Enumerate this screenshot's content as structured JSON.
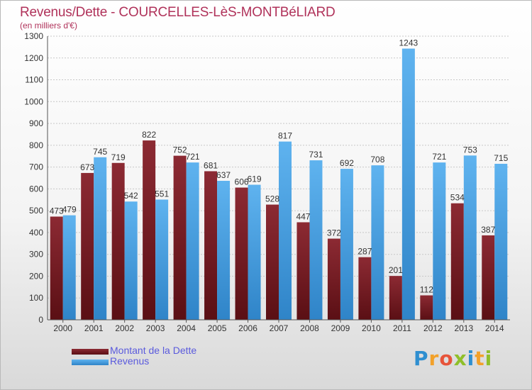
{
  "header": {
    "title": "Revenus/Dette - COURCELLES-LèS-MONTBéLIARD",
    "subtitle": "(en milliers d'€)"
  },
  "legend": {
    "debt_label": "Montant de la Dette",
    "revenue_label": "Revenus"
  },
  "logo": {
    "text": "Proxiti",
    "letters": [
      "P",
      "r",
      "o",
      "x",
      "i",
      "t",
      "i"
    ]
  },
  "colors": {
    "debt": "#7a1f27",
    "revenue": "#4aa3e3",
    "title": "#b0325a",
    "legend_text": "#5a5add"
  },
  "chart_data": {
    "type": "bar",
    "title": "Revenus/Dette - COURCELLES-LèS-MONTBéLIARD",
    "subtitle": "(en milliers d'€)",
    "categories": [
      "2000",
      "2001",
      "2002",
      "2003",
      "2004",
      "2005",
      "2006",
      "2007",
      "2008",
      "2009",
      "2010",
      "2011",
      "2012",
      "2013",
      "2014"
    ],
    "series": [
      {
        "name": "Montant de la Dette",
        "values": [
          473,
          673,
          719,
          822,
          752,
          681,
          606,
          528,
          447,
          372,
          287,
          201,
          112,
          534,
          387
        ]
      },
      {
        "name": "Revenus",
        "values": [
          479,
          745,
          542,
          551,
          721,
          637,
          619,
          817,
          731,
          692,
          708,
          1243,
          721,
          753,
          715
        ]
      }
    ],
    "ylim": [
      0,
      1300
    ],
    "yticks": [
      0,
      100,
      200,
      300,
      400,
      500,
      600,
      700,
      800,
      900,
      1000,
      1100,
      1200,
      1300
    ],
    "grid": true,
    "legend_position": "bottom-left"
  }
}
